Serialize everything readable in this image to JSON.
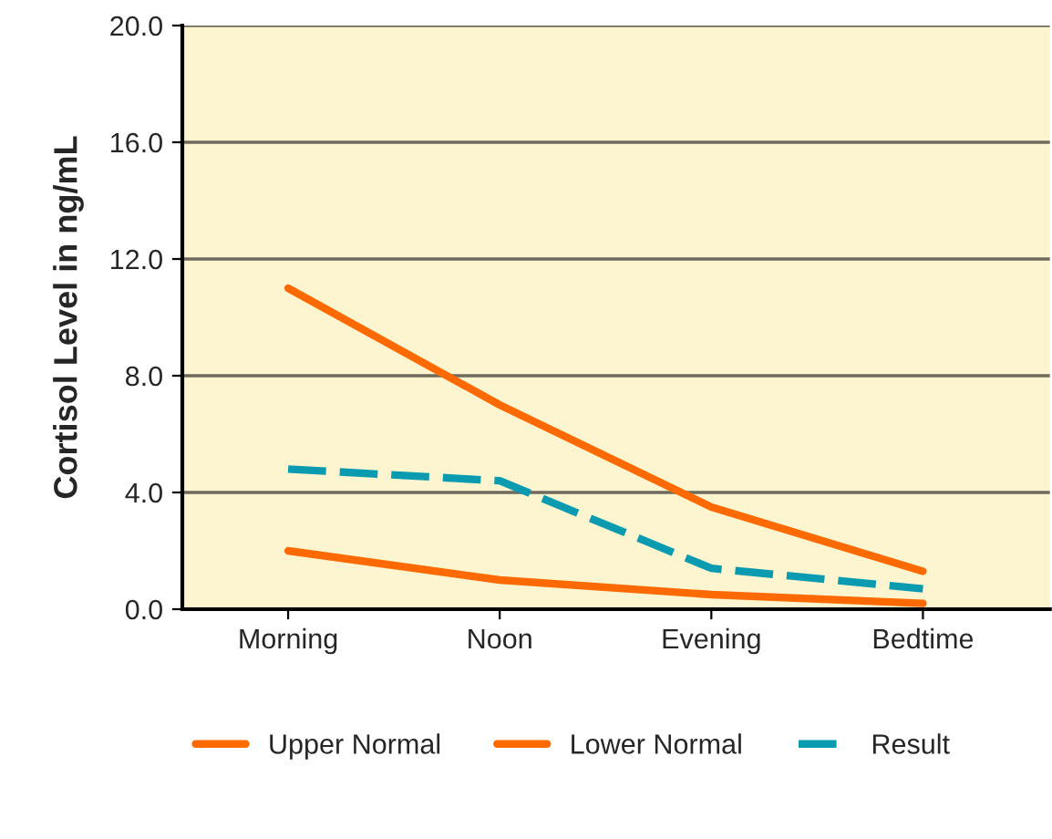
{
  "chart_data": {
    "type": "line",
    "ylabel": "Cortisol Level in ng/mL",
    "categories": [
      "Morning",
      "Noon",
      "Evening",
      "Bedtime"
    ],
    "series": [
      {
        "name": "Upper Normal",
        "color": "#ff6a00",
        "line_style": "solid",
        "values": [
          11.0,
          7.0,
          3.5,
          1.3
        ]
      },
      {
        "name": "Lower Normal",
        "color": "#ff6a00",
        "line_style": "solid",
        "values": [
          2.0,
          1.0,
          0.5,
          0.2
        ]
      },
      {
        "name": "Result",
        "color": "#0a9bb0",
        "line_style": "dashed",
        "values": [
          4.8,
          4.4,
          1.4,
          0.7
        ]
      }
    ],
    "ylim": [
      0,
      20
    ],
    "yticks": [
      {
        "value": 0,
        "label": "0.0"
      },
      {
        "value": 4,
        "label": "4.0"
      },
      {
        "value": 8,
        "label": "8.0"
      },
      {
        "value": 12,
        "label": "12.0"
      },
      {
        "value": 16,
        "label": "16.0"
      },
      {
        "value": 20,
        "label": "20.0"
      }
    ],
    "grid": "y",
    "legend": "bottom",
    "marker": "none"
  }
}
